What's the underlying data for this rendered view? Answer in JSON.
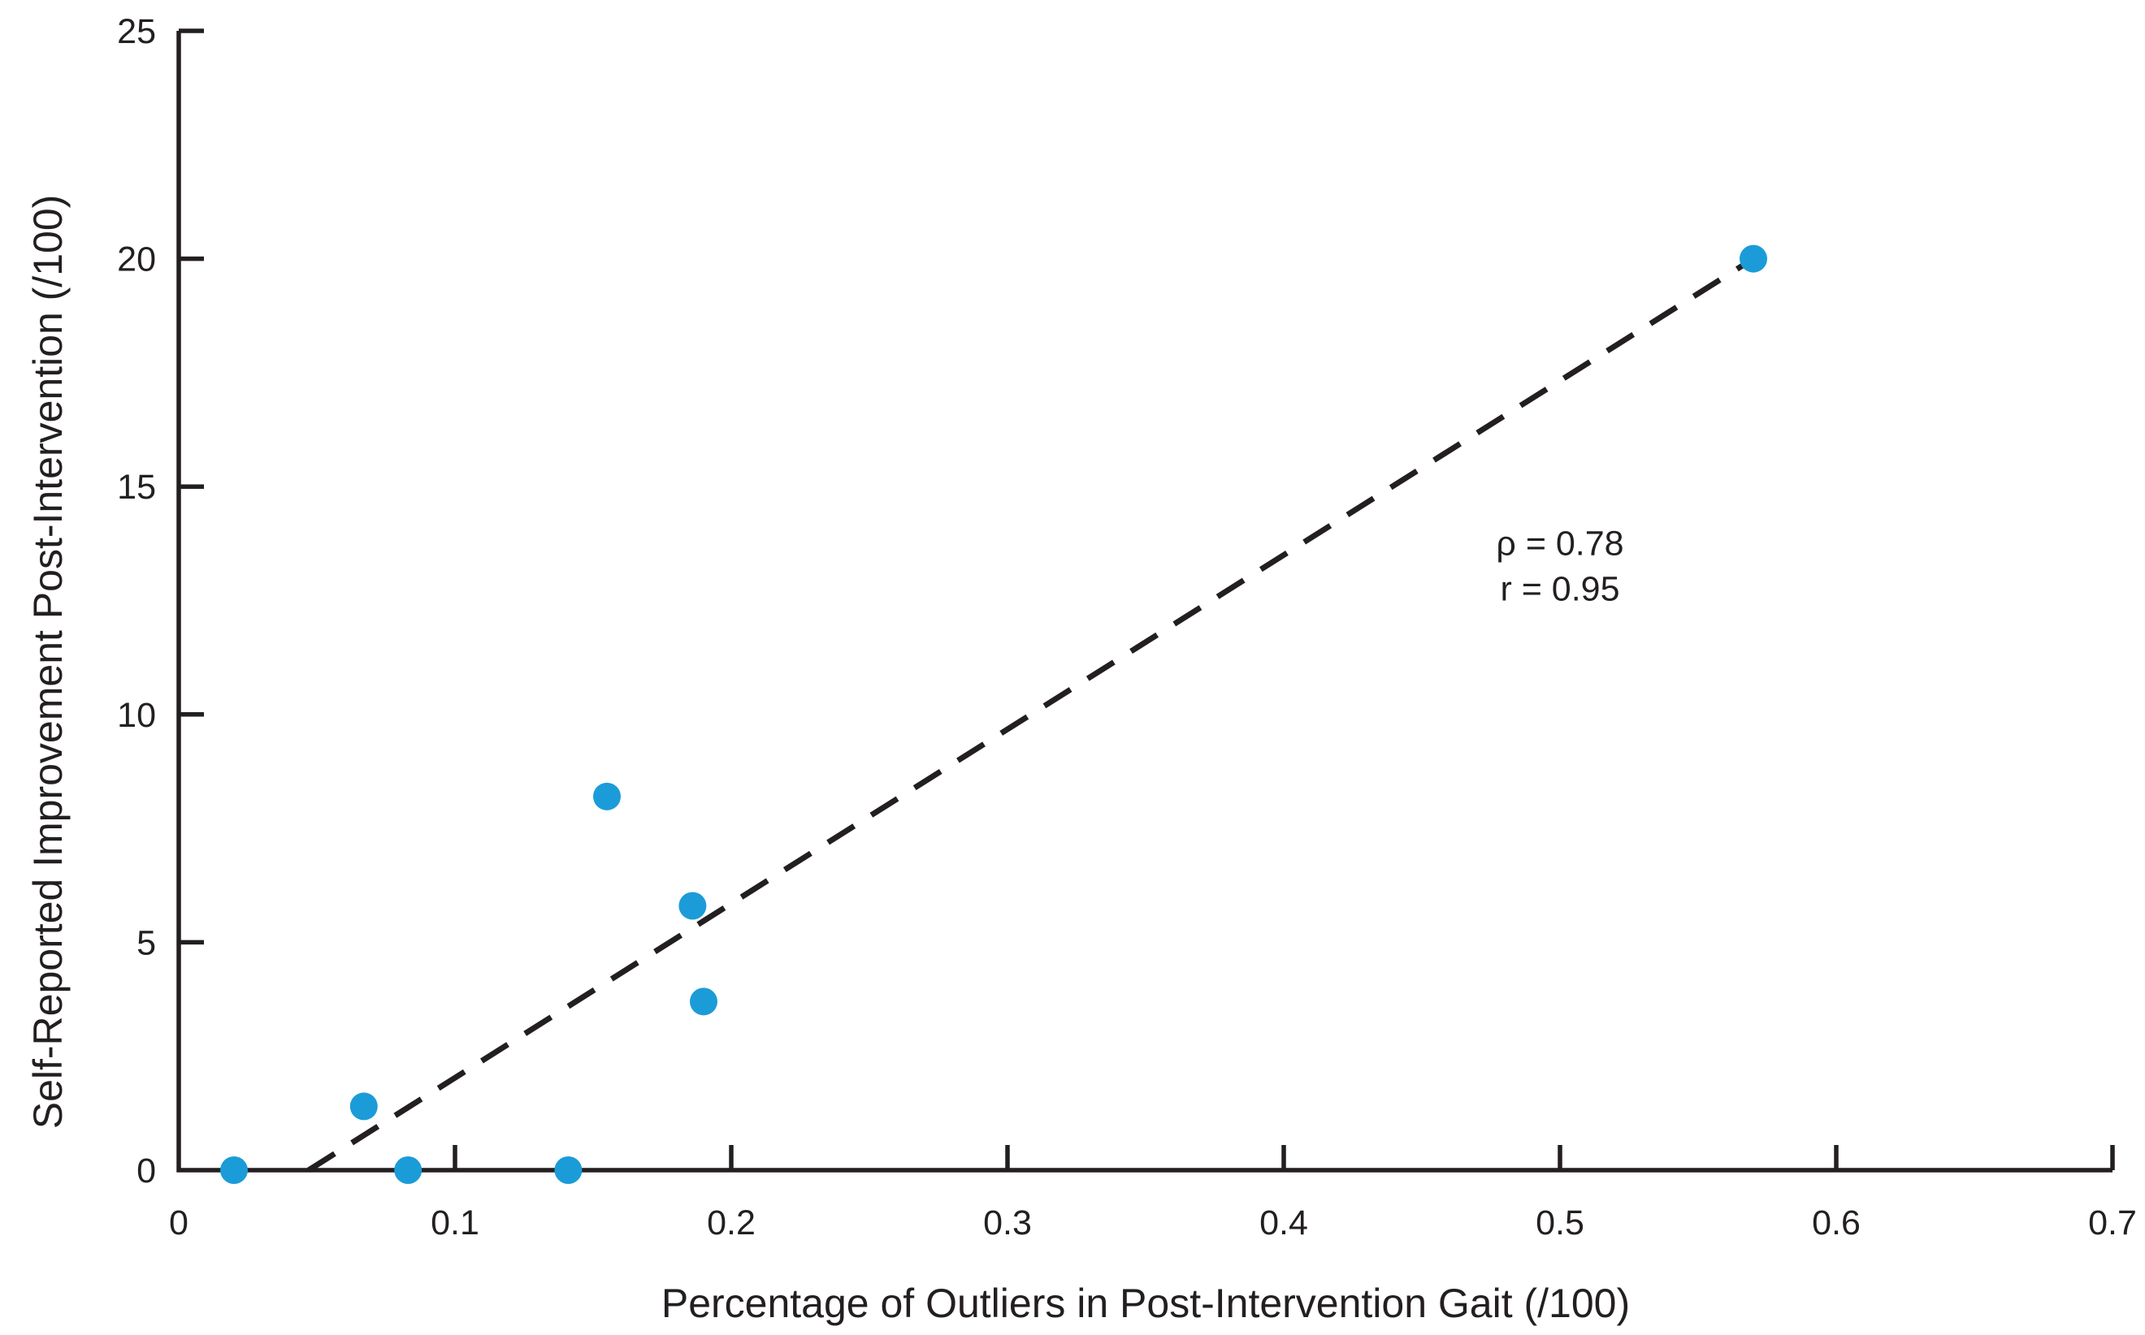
{
  "figure": {
    "background": "#ffffff"
  },
  "chart_data": {
    "type": "scatter",
    "title": "",
    "xlabel": "Percentage of Outliers in Post-Intervention Gait (/100)",
    "ylabel": "Self-Reported Improvement Post-Intervention  (/100)",
    "xlim": [
      0,
      0.7
    ],
    "ylim": [
      0,
      25
    ],
    "x_ticks": [
      0,
      0.1,
      0.2,
      0.3,
      0.4,
      0.5,
      0.6,
      0.7
    ],
    "x_tick_labels": [
      "0",
      "0.1",
      "0.2",
      "0.3",
      "0.4",
      "0.5",
      "0.6",
      "0.7"
    ],
    "y_ticks": [
      0,
      5,
      10,
      15,
      20,
      25
    ],
    "y_tick_labels": [
      "0",
      "5",
      "10",
      "15",
      "20",
      "25"
    ],
    "grid": false,
    "legend": false,
    "series": [
      {
        "name": "participants",
        "marker": "circle",
        "color": "#1b9cd8",
        "points": [
          {
            "x": 0.02,
            "y": 0
          },
          {
            "x": 0.067,
            "y": 1.4
          },
          {
            "x": 0.083,
            "y": 0
          },
          {
            "x": 0.141,
            "y": 0
          },
          {
            "x": 0.155,
            "y": 8.2
          },
          {
            "x": 0.186,
            "y": 5.8
          },
          {
            "x": 0.19,
            "y": 3.7
          },
          {
            "x": 0.57,
            "y": 20
          }
        ]
      }
    ],
    "trend_line": {
      "style": "dashed",
      "color": "#231f20",
      "x1": 0.047,
      "y1": 0,
      "x2": 0.57,
      "y2": 20
    },
    "annotation": {
      "x": 0.5,
      "line1": {
        "text": "ρ = 0.78",
        "y": 13.5
      },
      "line2": {
        "text": "r = 0.95",
        "y": 12.5
      }
    },
    "axis_color": "#231f20",
    "text_color": "#231f20"
  }
}
